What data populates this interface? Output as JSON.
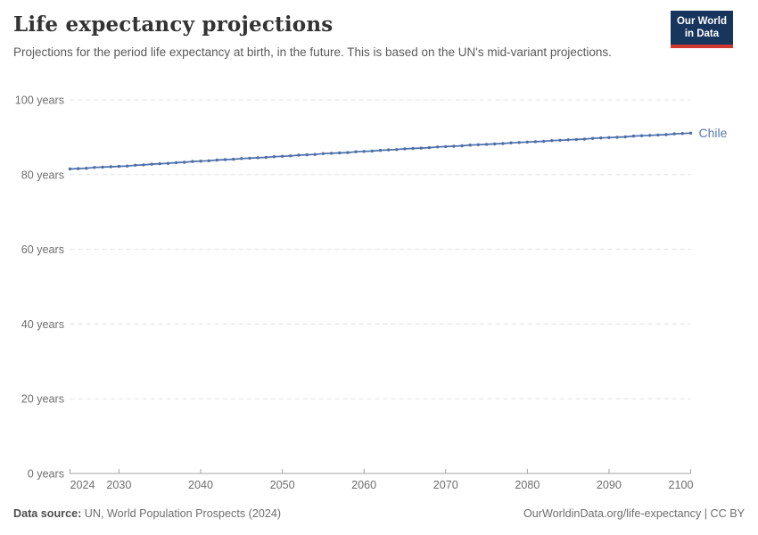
{
  "header": {
    "title": "Life expectancy projections",
    "subtitle": "Projections for the period life expectancy at birth, in the future. This is based on the UN's mid-variant projections.",
    "logo": {
      "line1": "Our World",
      "line2": "in Data"
    }
  },
  "footer": {
    "source_label": "Data source:",
    "source_text": " UN, World Population Prospects (2024)",
    "link_text": "OurWorldinData.org/life-expectancy | CC BY"
  },
  "colors": {
    "series": "#4c6ea9",
    "series_label": "#5b79ae",
    "grid": "#e0e0e0",
    "axis": "#a3a3a3",
    "tick_text": "#6e6e6e",
    "logo_bg": "#18365d",
    "logo_stripe": "#cf362c"
  },
  "chart_data": {
    "type": "line",
    "title": "Life expectancy projections",
    "xlabel": "",
    "ylabel": "years",
    "xlim": [
      2024,
      2100
    ],
    "ylim": [
      0,
      100
    ],
    "grid": "horizontal-dashed",
    "legend": "entity label at line end",
    "xticks": [
      2024,
      2030,
      2040,
      2050,
      2060,
      2070,
      2080,
      2090,
      2100
    ],
    "yticks": [
      {
        "value": 0,
        "label": "0 years"
      },
      {
        "value": 20,
        "label": "20 years"
      },
      {
        "value": 40,
        "label": "40 years"
      },
      {
        "value": 60,
        "label": "60 years"
      },
      {
        "value": 80,
        "label": "80 years"
      },
      {
        "value": 100,
        "label": "100 years"
      }
    ],
    "x": [
      2024,
      2025,
      2026,
      2027,
      2028,
      2029,
      2030,
      2031,
      2032,
      2033,
      2034,
      2035,
      2036,
      2037,
      2038,
      2039,
      2040,
      2041,
      2042,
      2043,
      2044,
      2045,
      2046,
      2047,
      2048,
      2049,
      2050,
      2051,
      2052,
      2053,
      2054,
      2055,
      2056,
      2057,
      2058,
      2059,
      2060,
      2061,
      2062,
      2063,
      2064,
      2065,
      2066,
      2067,
      2068,
      2069,
      2070,
      2071,
      2072,
      2073,
      2074,
      2075,
      2076,
      2077,
      2078,
      2079,
      2080,
      2081,
      2082,
      2083,
      2084,
      2085,
      2086,
      2087,
      2088,
      2089,
      2090,
      2091,
      2092,
      2093,
      2094,
      2095,
      2096,
      2097,
      2098,
      2099,
      2100
    ],
    "series": [
      {
        "name": "Chile",
        "color": "#4c6ea9",
        "values": [
          81.5,
          81.6,
          81.7,
          81.9,
          82.0,
          82.1,
          82.2,
          82.3,
          82.5,
          82.6,
          82.8,
          82.9,
          83.0,
          83.2,
          83.3,
          83.5,
          83.6,
          83.7,
          83.9,
          84.0,
          84.1,
          84.3,
          84.4,
          84.5,
          84.6,
          84.8,
          84.9,
          85.0,
          85.2,
          85.3,
          85.4,
          85.6,
          85.7,
          85.8,
          85.9,
          86.1,
          86.2,
          86.3,
          86.5,
          86.6,
          86.7,
          86.9,
          87.0,
          87.1,
          87.2,
          87.4,
          87.5,
          87.6,
          87.7,
          87.9,
          88.0,
          88.1,
          88.2,
          88.3,
          88.5,
          88.6,
          88.7,
          88.8,
          88.9,
          89.1,
          89.2,
          89.3,
          89.4,
          89.5,
          89.7,
          89.8,
          89.9,
          90.0,
          90.1,
          90.3,
          90.4,
          90.5,
          90.6,
          90.7,
          90.9,
          91.0,
          91.1
        ]
      }
    ]
  }
}
